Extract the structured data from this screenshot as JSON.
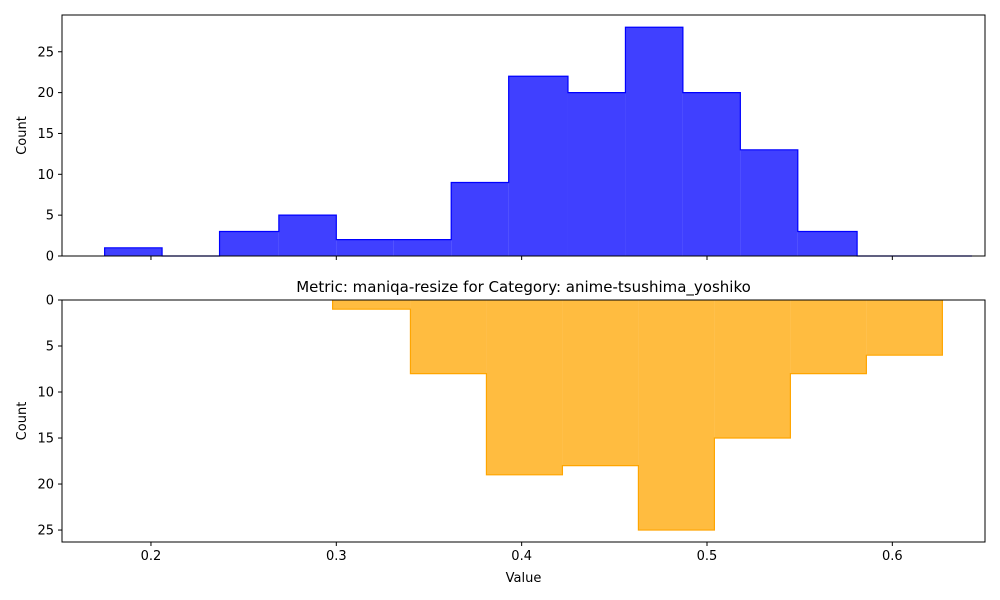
{
  "chart_data": [
    {
      "type": "histogram",
      "title": "",
      "xlabel": "",
      "ylabel": "Count",
      "xlim": [
        0.152,
        0.65
      ],
      "ylim": [
        0,
        29.5
      ],
      "y_inverted": false,
      "color": "#0000ff",
      "fill_alpha": 0.75,
      "yticks": [
        0,
        5,
        10,
        15,
        20,
        25
      ],
      "xticks": [
        0.2,
        0.3,
        0.4,
        0.5,
        0.6
      ],
      "show_xtick_labels": false,
      "bin_edges": [
        0.175,
        0.206,
        0.237,
        0.269,
        0.3,
        0.331,
        0.362,
        0.393,
        0.425,
        0.456,
        0.487,
        0.518,
        0.549,
        0.581,
        0.612,
        0.643
      ],
      "counts": [
        1,
        0,
        3,
        5,
        2,
        2,
        9,
        22,
        20,
        28,
        20,
        13,
        3,
        0,
        0
      ]
    },
    {
      "type": "histogram",
      "title": "Metric: maniqa-resize for Category: anime-tsushima_yoshiko",
      "xlabel": "Value",
      "ylabel": "Count",
      "xlim": [
        0.152,
        0.65
      ],
      "ylim": [
        0,
        26.3
      ],
      "y_inverted": true,
      "color": "#ffa500",
      "fill_alpha": 0.75,
      "yticks": [
        0,
        5,
        10,
        15,
        20,
        25
      ],
      "xticks": [
        0.2,
        0.3,
        0.4,
        0.5,
        0.6
      ],
      "xtick_labels": [
        "0.2",
        "0.3",
        "0.4",
        "0.5",
        "0.6"
      ],
      "show_xtick_labels": true,
      "bin_edges": [
        0.298,
        0.34,
        0.381,
        0.422,
        0.463,
        0.504,
        0.545,
        0.586,
        0.627
      ],
      "counts": [
        1,
        8,
        19,
        18,
        25,
        15,
        8,
        6
      ]
    }
  ]
}
